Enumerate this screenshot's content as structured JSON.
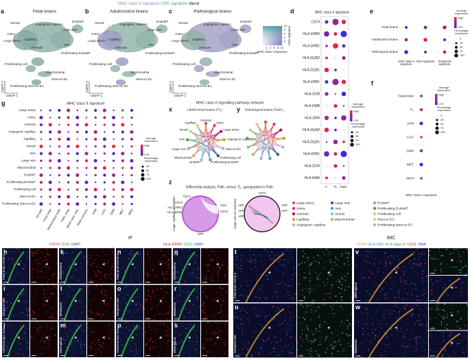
{
  "figure_title": [
    "MHC class II signature",
    "CNS signature",
    "blend"
  ],
  "a": {
    "letter": "a",
    "title": "Fetal brains",
    "clusters": [
      "Venule",
      "Artery",
      "Large artery",
      "Angiogenic capillary",
      "Capillary",
      "Arteriole",
      "Large vein",
      "Vein",
      "EndoMT",
      "Proliferating EndoMT",
      "Proliferating cell",
      "Mitochondrial",
      "Stem-to-EC",
      "Proliferating stem-to-EC"
    ],
    "umap_x": "UMAP 1",
    "umap_y": "UMAP 2"
  },
  "b": {
    "letter": "b",
    "title": "Adult/control brains",
    "clusters": [
      "Venule",
      "Artery",
      "Large artery",
      "Angiogenic capillary",
      "Capillary",
      "Arteriole",
      "Large vein",
      "Vein",
      "EndoMT",
      "Proliferating EndoMT",
      "Proliferating cell",
      "Mitochondrial",
      "Stem-to-EC",
      "Proliferating stem-to-EC"
    ],
    "umap_x": "UMAP 1",
    "umap_y": "UMAP 2"
  },
  "c": {
    "letter": "c",
    "title": "Pathological brains",
    "clusters": [
      "Venule",
      "Artery",
      "Large artery",
      "Angiogenic capillary",
      "Capillary",
      "Arteriole",
      "Large vein",
      "Vein",
      "EndoMT",
      "Proliferating EndoMT",
      "Proliferating cell",
      "Mitochondrial",
      "Stem-to-EC",
      "Proliferating stem-to-EC"
    ],
    "umap_x": "UMAP 1",
    "umap_y": "UMAP 2"
  },
  "blend_legend": {
    "y_label": "CNS signature",
    "x_label": "MHC class II signature",
    "xticks": [
      2,
      4,
      6,
      8,
      10
    ],
    "yticks": [
      2,
      4,
      6,
      8,
      10
    ]
  },
  "d": {
    "letter": "d",
    "title": "MHC class II signature",
    "genes": [
      "CD74",
      "HLA-DRB5",
      "HLA-DRB1",
      "HLA-DQB2",
      "HLA-DQB1",
      "HLA-DPB1",
      "HLA-DOB",
      "HLA-DMB",
      "HLA-DRA",
      "HLA-DQA2",
      "HLA-DQA1",
      "HLA-DPA1",
      "HLA-DOA",
      "HLA-DMA"
    ],
    "columns": [
      "F.",
      "TL",
      "Path."
    ],
    "legend": {
      "color_title": "Average expression",
      "high": "High",
      "low": "Low",
      "size_title": "Percentage expressed",
      "sizes": [
        25,
        50,
        75,
        100
      ]
    }
  },
  "e": {
    "letter": "e",
    "rows": [
      "Fetal brains",
      "Adult/control brains",
      "Pathological brains"
    ],
    "columns": [
      "MHC class II signature",
      "CNS signature",
      "Peripheral signature"
    ],
    "legend": {
      "color_title": "Average expression",
      "high": "High",
      "low": "Low",
      "size_title": "Percentage expressed",
      "sizes": [
        0,
        25,
        50,
        75,
        100
      ]
    }
  },
  "f": {
    "letter": "f",
    "rows": [
      "Fetal brain",
      "TL",
      "AVM",
      "LGG",
      "GBM",
      "MET",
      "MEN"
    ],
    "column": "MHC class II signature",
    "legend": {
      "color_title": "Average expression",
      "high": "High",
      "low": "Low",
      "size_title": "Percentage expressed",
      "sizes": [
        0,
        25,
        50,
        75,
        100
      ]
    }
  },
  "g": {
    "letter": "g",
    "title": "MHC class II signature",
    "rows": [
      "Large artery",
      "Artery",
      "Arteriole",
      "Angiogenic capillary",
      "Capillary",
      "Venule",
      "Vein",
      "Large vein",
      "Mitochondrial",
      "EndoMT",
      "Proliferating EndoMT",
      "Proliferating cell",
      "Stem-to-EC",
      "Proliferating Stem-to-EC"
    ],
    "columns": [
      "All cells",
      "Fetal brain",
      "Adult/control brain",
      "Path. brain",
      "Brain vasc. mal.",
      "Brain tumours",
      "AVM",
      "LGG",
      "GBM",
      "MET",
      "MEN"
    ],
    "legend": {
      "color_title": "Average expression",
      "high": "High",
      "low": "Low",
      "size_title": "Percentage expressed",
      "sizes": [
        25,
        50,
        75,
        100
      ]
    }
  },
  "network": {
    "title": "MHC class II signalling pathway network",
    "x": {
      "letter": "x",
      "title": "Adult/control brains (TL)",
      "nodes": [
        "Arteriole",
        "Artery",
        "Large artery",
        "Angiogenic capillary",
        "Stem-to-EC",
        "Proliferating cell",
        "Proliferating EndoMT",
        "EndoMT",
        "Mitochondrial",
        "Large vein",
        "Vein",
        "Venule",
        "Capillary"
      ]
    },
    "y": {
      "letter": "y",
      "title": "Pathological brains (Path.)"
    }
  },
  "z": {
    "letter": "z",
    "title": "Differential analysis, Path. versus TL, upregulated in Path.",
    "sender_label": "Angio. capillary as senders",
    "receiver_label": "Large vein as receivers",
    "sender_genes": [
      "CD74",
      "CD74",
      "HLA-DPA1",
      "HLA-DRB1",
      "CD4",
      "CD74",
      "APP"
    ],
    "receiver_genes": [
      "CD74",
      "APP",
      "APP",
      "APP",
      "APP",
      "APP"
    ]
  },
  "cell_types_legend": [
    "Large artery",
    "Artery",
    "Arteriole",
    "Capillary",
    "Angiogenic capillary",
    "Large vein",
    "Vein",
    "Venule",
    "Mitochondrial",
    "EndoMT",
    "Proliferating EndoMT",
    "Proliferating cell",
    "Stem-to-EC",
    "Proliferating stem-to-EC"
  ],
  "if": {
    "label": "IF",
    "stain1": [
      "CD74",
      "CD31",
      "DAPI"
    ],
    "stain2": [
      "HLA-DRB5",
      "CD31",
      "DAPI"
    ],
    "panels": [
      {
        "letter": "h",
        "tissue": "Fetal brain GW18.4"
      },
      {
        "letter": "i",
        "tissue": "Temporal lobe"
      },
      {
        "letter": "j",
        "tissue": "Arteriovenous mal."
      },
      {
        "letter": "k",
        "tissue": "Glioblastoma"
      },
      {
        "letter": "l",
        "tissue": "Metastasis"
      },
      {
        "letter": "m",
        "tissue": "Meningioma"
      },
      {
        "letter": "n",
        "tissue": "Fetal brain GW18.4"
      },
      {
        "letter": "o",
        "tissue": "Temporal lobe"
      },
      {
        "letter": "p",
        "tissue": "Arteriovenous mal."
      },
      {
        "letter": "q",
        "tissue": "Glioblastoma"
      },
      {
        "letter": "r",
        "tissue": "Metastasis"
      },
      {
        "letter": "s",
        "tissue": "Meningioma"
      }
    ]
  },
  "imc": {
    "label": "IMC",
    "stain": [
      "CD74",
      "HLA-DRs",
      "HLA-oligo-D",
      "CD31",
      "DNA"
    ],
    "panels": [
      {
        "letter": "t",
        "tissue": "Fetal brain GW18.4"
      },
      {
        "letter": "u",
        "tissue": "Temporal lobe"
      },
      {
        "letter": "v",
        "tissue": "Meningioma"
      },
      {
        "letter": "w",
        "tissue": "Metastasis"
      }
    ]
  }
}
